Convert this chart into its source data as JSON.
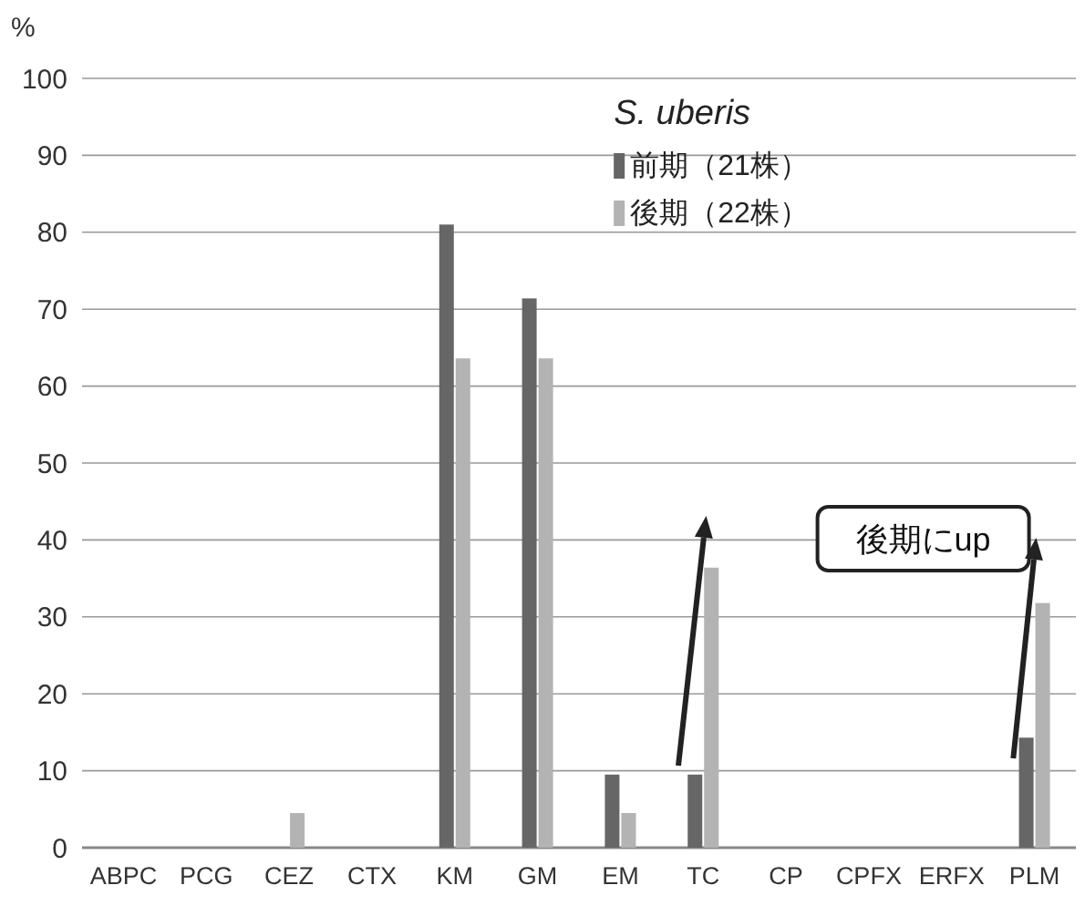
{
  "chart_data": {
    "type": "bar",
    "ylabel": "%",
    "legend_title": "S. uberis",
    "categories": [
      "ABPC",
      "PCG",
      "CEZ",
      "CTX",
      "KM",
      "GM",
      "EM",
      "TC",
      "CP",
      "CPFX",
      "ERFX",
      "PLM"
    ],
    "series": [
      {
        "name": "前期（21株）",
        "color": "#666666",
        "values": [
          0,
          0,
          0,
          0,
          81.0,
          71.4,
          9.5,
          9.5,
          0,
          0,
          0,
          14.3
        ]
      },
      {
        "name": "後期（22株）",
        "color": "#b3b3b3",
        "values": [
          0,
          0,
          4.5,
          0,
          63.6,
          63.6,
          4.5,
          36.4,
          0,
          0,
          0,
          31.8
        ]
      }
    ],
    "ylim": [
      0,
      100
    ],
    "yticks": [
      0,
      10,
      20,
      30,
      40,
      50,
      60,
      70,
      80,
      90,
      100
    ],
    "grid": "y",
    "legend": "top right",
    "annotations": [
      "後期にup"
    ]
  }
}
